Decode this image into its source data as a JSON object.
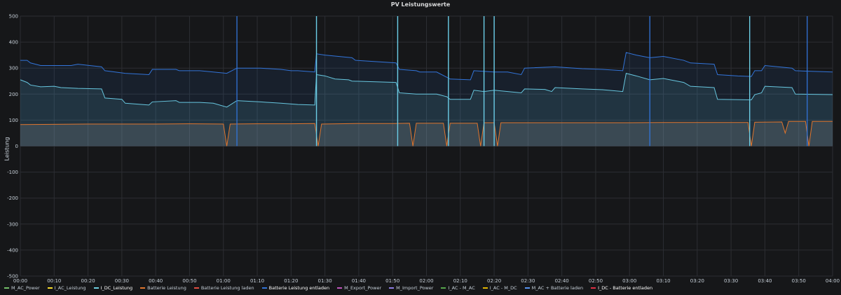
{
  "panel": {
    "title": "PV Leistungswerte"
  },
  "chart_data": {
    "type": "area",
    "title": "PV Leistungswerte",
    "ylabel": "Leistung",
    "xlabel": "",
    "ylim": [
      -500,
      500
    ],
    "xlim": [
      "00:00",
      "04:00"
    ],
    "grid": true,
    "legend_position": "bottom-left",
    "y_ticks": [
      "500",
      "400",
      "300",
      "200",
      "100",
      "0",
      "-100",
      "-200",
      "-300",
      "-400",
      "-500"
    ],
    "x_ticks": [
      "00:00",
      "00:10",
      "00:20",
      "00:30",
      "00:40",
      "00:50",
      "01:00",
      "01:10",
      "01:20",
      "01:30",
      "01:40",
      "01:50",
      "02:00",
      "02:10",
      "02:20",
      "02:30",
      "02:40",
      "02:50",
      "03:00",
      "03:10",
      "03:20",
      "03:30",
      "03:40",
      "03:50",
      "04:00"
    ],
    "series": [
      {
        "name": "I_DC_Leistung",
        "color": "#6ed0e0",
        "fill": true,
        "points": [
          [
            0,
            255
          ],
          [
            2,
            245
          ],
          [
            3,
            235
          ],
          [
            6,
            228
          ],
          [
            10,
            230
          ],
          [
            12,
            225
          ],
          [
            17,
            222
          ],
          [
            24,
            220
          ],
          [
            25,
            185
          ],
          [
            30,
            180
          ],
          [
            31,
            165
          ],
          [
            38,
            158
          ],
          [
            39,
            170
          ],
          [
            46,
            175
          ],
          [
            47,
            168
          ],
          [
            53,
            168
          ],
          [
            57,
            165
          ],
          [
            61,
            150
          ],
          [
            64,
            175
          ],
          [
            71,
            170
          ],
          [
            77,
            165
          ],
          [
            82,
            160
          ],
          [
            87,
            158
          ],
          [
            87.5,
            275
          ],
          [
            90,
            270
          ],
          [
            93,
            258
          ],
          [
            97,
            255
          ],
          [
            98,
            250
          ],
          [
            111,
            245
          ],
          [
            112,
            205
          ],
          [
            117,
            200
          ],
          [
            118,
            200
          ],
          [
            123,
            200
          ],
          [
            126,
            190
          ],
          [
            127,
            180
          ],
          [
            133,
            180
          ],
          [
            134,
            215
          ],
          [
            137,
            210
          ],
          [
            140,
            215
          ],
          [
            148,
            205
          ],
          [
            149,
            220
          ],
          [
            155,
            218
          ],
          [
            157,
            210
          ],
          [
            158,
            225
          ],
          [
            166,
            220
          ],
          [
            172,
            217
          ],
          [
            178,
            210
          ],
          [
            179,
            280
          ],
          [
            182,
            270
          ],
          [
            186,
            255
          ],
          [
            190,
            260
          ],
          [
            196,
            245
          ],
          [
            198,
            230
          ],
          [
            205,
            225
          ],
          [
            206,
            180
          ],
          [
            216,
            178
          ],
          [
            217,
            198
          ],
          [
            219,
            205
          ],
          [
            220,
            230
          ],
          [
            228,
            225
          ],
          [
            229,
            200
          ],
          [
            240,
            198
          ]
        ]
      },
      {
        "name": "Batterie Leistung entladen",
        "color": "#3274d9",
        "fill": true,
        "points": [
          [
            0,
            330
          ],
          [
            2,
            330
          ],
          [
            3,
            320
          ],
          [
            6,
            310
          ],
          [
            10,
            310
          ],
          [
            12,
            310
          ],
          [
            15,
            310
          ],
          [
            17,
            315
          ],
          [
            24,
            305
          ],
          [
            25,
            290
          ],
          [
            31,
            280
          ],
          [
            38,
            275
          ],
          [
            39,
            295
          ],
          [
            46,
            295
          ],
          [
            47,
            290
          ],
          [
            53,
            290
          ],
          [
            57,
            285
          ],
          [
            61,
            280
          ],
          [
            64,
            300
          ],
          [
            71,
            300
          ],
          [
            77,
            295
          ],
          [
            80,
            290
          ],
          [
            82,
            290
          ],
          [
            87,
            285
          ],
          [
            87.5,
            355
          ],
          [
            90,
            350
          ],
          [
            98,
            340
          ],
          [
            99,
            330
          ],
          [
            111,
            320
          ],
          [
            112,
            295
          ],
          [
            117,
            290
          ],
          [
            118,
            285
          ],
          [
            123,
            285
          ],
          [
            126,
            265
          ],
          [
            127,
            258
          ],
          [
            133,
            255
          ],
          [
            134,
            290
          ],
          [
            140,
            285
          ],
          [
            144,
            285
          ],
          [
            148,
            275
          ],
          [
            149,
            300
          ],
          [
            158,
            305
          ],
          [
            166,
            298
          ],
          [
            172,
            295
          ],
          [
            178,
            290
          ],
          [
            179,
            360
          ],
          [
            182,
            350
          ],
          [
            186,
            340
          ],
          [
            190,
            345
          ],
          [
            196,
            330
          ],
          [
            198,
            320
          ],
          [
            205,
            315
          ],
          [
            206,
            275
          ],
          [
            212,
            270
          ],
          [
            216,
            268
          ],
          [
            217,
            290
          ],
          [
            219,
            290
          ],
          [
            220,
            310
          ],
          [
            228,
            300
          ],
          [
            229,
            290
          ],
          [
            240,
            285
          ]
        ]
      },
      {
        "name": "Batterie Leistung",
        "color": "#e0752d",
        "fill": true,
        "points": [
          [
            0,
            83
          ],
          [
            10,
            84
          ],
          [
            20,
            85
          ],
          [
            30,
            85
          ],
          [
            40,
            85
          ],
          [
            50,
            86
          ],
          [
            60,
            85
          ],
          [
            61,
            0
          ],
          [
            62,
            85
          ],
          [
            70,
            86
          ],
          [
            80,
            86
          ],
          [
            87,
            87
          ],
          [
            88,
            0
          ],
          [
            89,
            85
          ],
          [
            100,
            87
          ],
          [
            110,
            87
          ],
          [
            115,
            88
          ],
          [
            116,
            0
          ],
          [
            117,
            88
          ],
          [
            125,
            88
          ],
          [
            126,
            0
          ],
          [
            127,
            88
          ],
          [
            135,
            88
          ],
          [
            136,
            0
          ],
          [
            137,
            90
          ],
          [
            140,
            90
          ],
          [
            141,
            0
          ],
          [
            142,
            90
          ],
          [
            150,
            90
          ],
          [
            160,
            90
          ],
          [
            170,
            90
          ],
          [
            180,
            90
          ],
          [
            190,
            91
          ],
          [
            200,
            91
          ],
          [
            210,
            91
          ],
          [
            215,
            91
          ],
          [
            216,
            0
          ],
          [
            217,
            92
          ],
          [
            225,
            93
          ],
          [
            226,
            50
          ],
          [
            227,
            95
          ],
          [
            232,
            95
          ],
          [
            233,
            0
          ],
          [
            234,
            95
          ],
          [
            240,
            95
          ]
        ]
      }
    ],
    "spikes": [
      {
        "name": "Batterie Leistung entladen",
        "color": "#3274d9",
        "x": [
          64,
          87.5,
          111.5,
          126.5,
          137,
          140,
          186,
          215.5,
          232.5
        ]
      },
      {
        "name": "I_DC_Leistung",
        "color": "#6ed0e0",
        "x": [
          87.5,
          111.5,
          126.5,
          137,
          140,
          215.5
        ]
      }
    ],
    "legend": [
      {
        "label": "M_AC_Power",
        "color": "#73bf69",
        "active": false
      },
      {
        "label": "I_AC_Leistung",
        "color": "#fade2a",
        "active": false
      },
      {
        "label": "I_DC_Leistung",
        "color": "#6ed0e0",
        "active": true
      },
      {
        "label": "Batterie Leistung",
        "color": "#e0752d",
        "active": false
      },
      {
        "label": "Batterie Leistung laden",
        "color": "#e24d42",
        "active": false
      },
      {
        "label": "Batterie Leistung entladen",
        "color": "#3274d9",
        "active": true
      },
      {
        "label": "M_Export_Power",
        "color": "#c156bd",
        "active": false
      },
      {
        "label": "M_Import_Power",
        "color": "#8f7ee5",
        "active": false
      },
      {
        "label": "I_AC - M_AC",
        "color": "#56a64b",
        "active": false
      },
      {
        "label": "I_AC - M_DC",
        "color": "#e0b400",
        "active": false
      },
      {
        "label": "M_AC + Batterie laden",
        "color": "#5794f2",
        "active": false
      },
      {
        "label": "I_DC - Batterie entladen",
        "color": "#e02f44",
        "active": true
      }
    ]
  }
}
